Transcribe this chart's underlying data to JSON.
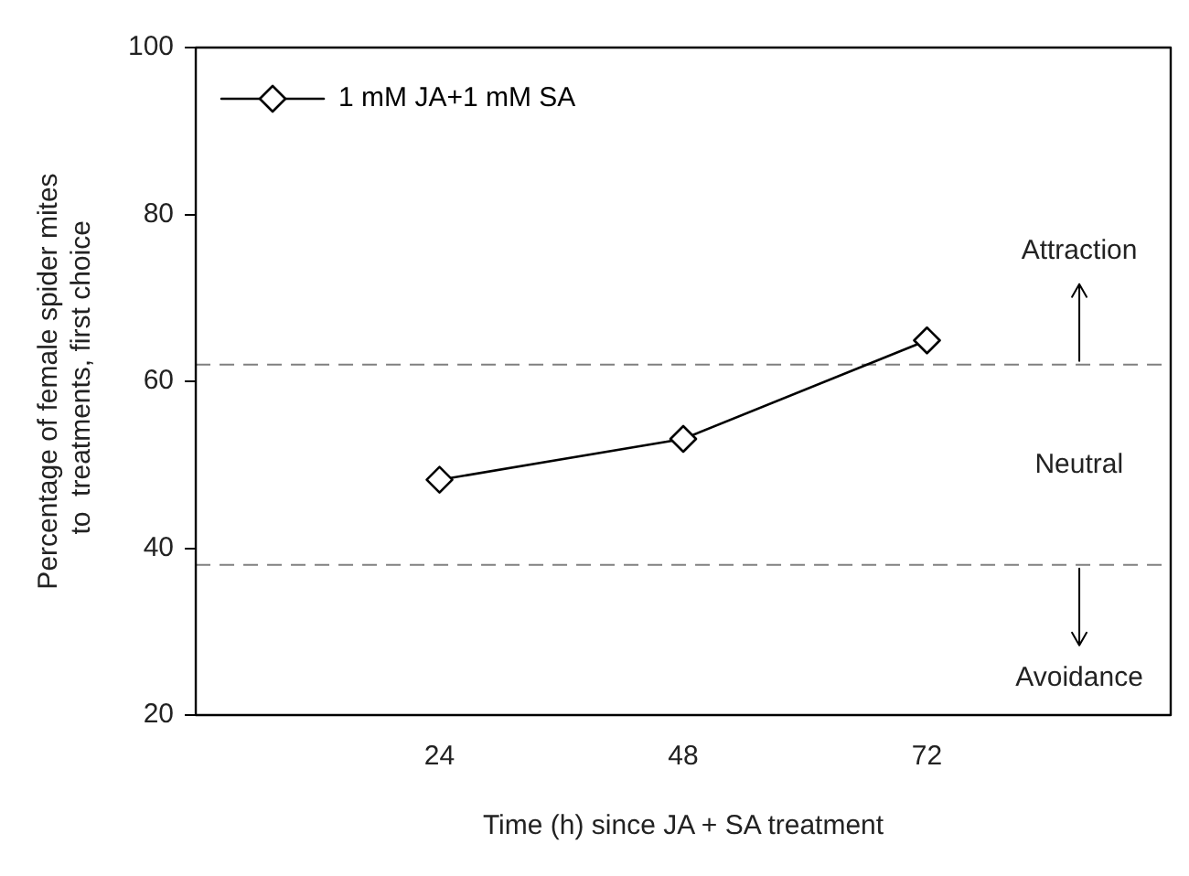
{
  "chart_data": {
    "type": "line",
    "xlabel": "Time (h) since JA + SA treatment",
    "ylabel": "Percentage of female spider mites\n to  treatments, first choice",
    "x": [
      24,
      48,
      72
    ],
    "series": [
      {
        "name": "1 mM JA+1 mM SA",
        "color": "#000000",
        "values": [
          48.2,
          53.1,
          64.9
        ]
      }
    ],
    "xlim": [
      0,
      96
    ],
    "xticks": [
      24,
      48,
      72
    ],
    "ylim": [
      20,
      100
    ],
    "yticks": [
      20,
      40,
      60,
      80,
      100
    ],
    "ref_lines": [
      {
        "axis": "y",
        "value": 62,
        "color": "#808080",
        "line_style": "dashed"
      },
      {
        "axis": "y",
        "value": 38,
        "color": "#808080",
        "line_style": "dashed"
      }
    ],
    "annotations": [
      {
        "text": "Attraction",
        "x": 87,
        "y": 62
      },
      "Neutral",
      {
        "text": "Avoidance",
        "x": 87,
        "y": 38
      }
    ],
    "marker": "diamond",
    "line_style": "solid",
    "legend": "top left",
    "grid": false
  }
}
